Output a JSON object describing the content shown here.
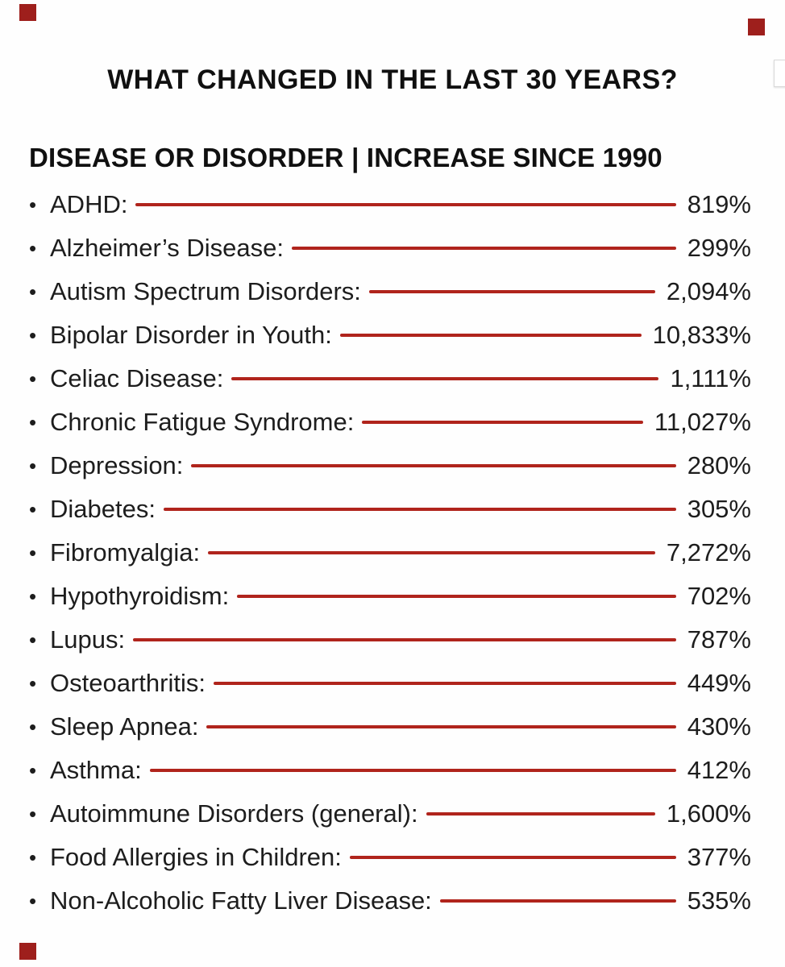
{
  "title": "WHAT CHANGED IN THE LAST 30 YEARS?",
  "list": {
    "header": "DISEASE OR DISORDER | INCREASE SINCE 1990",
    "bullet": "•",
    "items": [
      {
        "label": "ADHD:",
        "value": "819%"
      },
      {
        "label": "Alzheimer’s Disease:",
        "value": "299%"
      },
      {
        "label": "Autism Spectrum Disorders:",
        "value": "2,094%"
      },
      {
        "label": "Bipolar Disorder in Youth:",
        "value": "10,833%"
      },
      {
        "label": "Celiac Disease:",
        "value": "1,111%"
      },
      {
        "label": "Chronic Fatigue Syndrome:",
        "value": "11,027%"
      },
      {
        "label": "Depression:",
        "value": "280%"
      },
      {
        "label": "Diabetes:",
        "value": "305%"
      },
      {
        "label": "Fibromyalgia:",
        "value": "7,272%"
      },
      {
        "label": "Hypothyroidism:",
        "value": "702%"
      },
      {
        "label": "Lupus:",
        "value": "787%"
      },
      {
        "label": "Osteoarthritis:",
        "value": "449%"
      },
      {
        "label": "Sleep Apnea:",
        "value": "430%"
      },
      {
        "label": "Asthma:",
        "value": "412%"
      },
      {
        "label": "Autoimmune Disorders (general):",
        "value": "1,600%"
      },
      {
        "label": "Food Allergies in Children:",
        "value": "377%"
      },
      {
        "label": "Non-Alcoholic Fatty Liver Disease:",
        "value": "535%"
      }
    ]
  },
  "colors": {
    "accent_red": "#9e1f1c",
    "leader_line": "#b0241c",
    "text": "#1d1d1d"
  }
}
